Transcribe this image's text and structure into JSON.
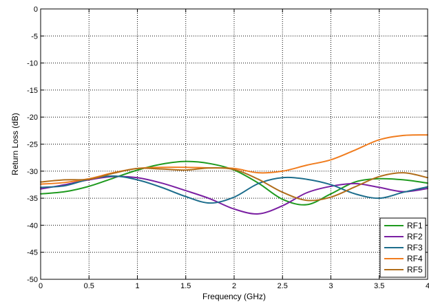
{
  "chart_data": {
    "type": "line",
    "title": "",
    "xlabel": "Frequency (GHz)",
    "ylabel": "Return Loss (dB)",
    "xlim": [
      0,
      4
    ],
    "ylim": [
      -50,
      0
    ],
    "xticks": [
      0,
      0.5,
      1,
      1.5,
      2,
      2.5,
      3,
      3.5,
      4
    ],
    "xtick_labels": [
      "0",
      "0.5",
      "1",
      "1.5",
      "2",
      "2.5",
      "3",
      "3.5",
      "4"
    ],
    "yticks": [
      0,
      -5,
      -10,
      -15,
      -20,
      -25,
      -30,
      -35,
      -40,
      -45,
      -50
    ],
    "ytick_labels": [
      "0",
      "-5",
      "-10",
      "-15",
      "-20",
      "-25",
      "-30",
      "-35",
      "-40",
      "-45",
      "-50"
    ],
    "grid": true,
    "grid_style": "dotted",
    "legend_position": "bottom-right",
    "x": [
      0,
      0.25,
      0.5,
      0.75,
      1,
      1.25,
      1.5,
      1.75,
      2,
      2.25,
      2.5,
      2.75,
      3,
      3.25,
      3.5,
      3.75,
      4
    ],
    "series": [
      {
        "name": "RF1",
        "color": "#1e9a1e",
        "values": [
          -34.2,
          -33.8,
          -32.8,
          -31.3,
          -29.8,
          -28.7,
          -28.2,
          -28.6,
          -29.8,
          -32.2,
          -35.2,
          -36.2,
          -34.2,
          -32.0,
          -31.4,
          -31.6,
          -32.2
        ]
      },
      {
        "name": "RF2",
        "color": "#7a1fa2",
        "values": [
          -33.3,
          -32.5,
          -31.6,
          -31.0,
          -31.2,
          -32.2,
          -33.6,
          -35.1,
          -37.0,
          -37.9,
          -36.4,
          -34.0,
          -32.8,
          -32.3,
          -33.0,
          -33.8,
          -33.2
        ]
      },
      {
        "name": "RF3",
        "color": "#1c6d8c",
        "values": [
          -33.0,
          -32.7,
          -31.5,
          -30.9,
          -31.6,
          -33.0,
          -34.7,
          -35.9,
          -34.8,
          -32.3,
          -31.2,
          -31.5,
          -32.5,
          -34.2,
          -35.0,
          -33.9,
          -32.9
        ]
      },
      {
        "name": "RF4",
        "color": "#f07c1e",
        "values": [
          -32.4,
          -32.1,
          -31.4,
          -30.3,
          -29.5,
          -29.3,
          -29.3,
          -29.4,
          -29.5,
          -30.3,
          -30.0,
          -28.9,
          -27.9,
          -26.1,
          -24.2,
          -23.4,
          -23.3
        ]
      },
      {
        "name": "RF5",
        "color": "#b06d1a",
        "values": [
          -32.0,
          -31.6,
          -31.5,
          -30.4,
          -29.5,
          -29.6,
          -29.8,
          -29.4,
          -29.7,
          -31.5,
          -33.9,
          -35.4,
          -34.8,
          -32.9,
          -31.0,
          -30.3,
          -31.2
        ]
      }
    ]
  }
}
